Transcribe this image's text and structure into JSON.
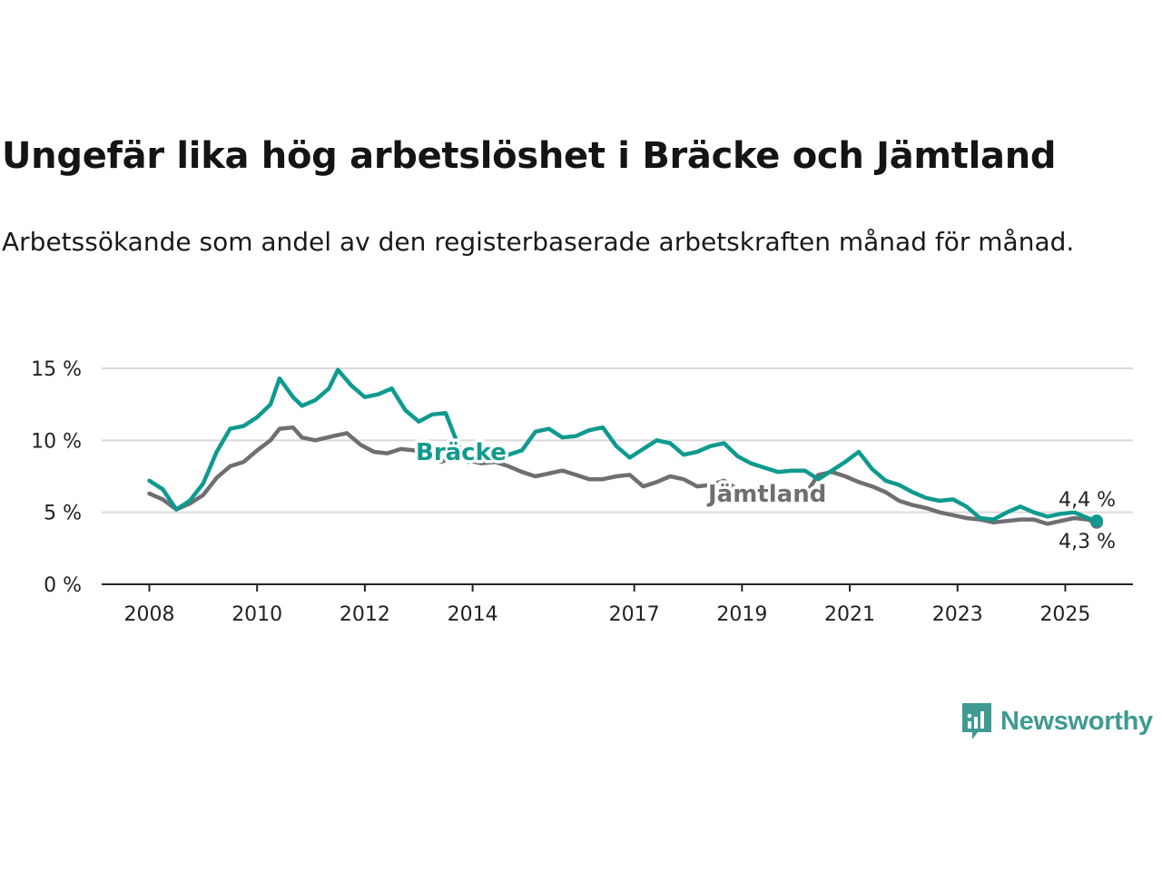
{
  "chart_data": {
    "type": "line",
    "title": "Ungefär lika hög arbetslöshet i Bräcke och Jämtland",
    "subtitle": "Arbetssökande som andel av den registerbaserade arbetskraften månad för månad.",
    "y_unit": "%",
    "ylim": [
      0,
      15
    ],
    "y_ticks": [
      0,
      5,
      10,
      15
    ],
    "y_tick_labels": [
      "0 %",
      "5 %",
      "10 %",
      "15 %"
    ],
    "x_ticks": [
      2008,
      2010,
      2012,
      2014,
      2017,
      2019,
      2021,
      2023,
      2025
    ],
    "x_tick_labels": [
      "2008",
      "2010",
      "2012",
      "2014",
      "2017",
      "2019",
      "2021",
      "2023",
      "2025"
    ],
    "grid": "horizontal",
    "series": [
      {
        "name": "Jämtland",
        "color": "#6f6e73",
        "end_label": "4,3 %",
        "points": [
          [
            "2008-01",
            6.3
          ],
          [
            "2008-04",
            5.9
          ],
          [
            "2008-07",
            5.2
          ],
          [
            "2008-10",
            5.6
          ],
          [
            "2009-01",
            6.2
          ],
          [
            "2009-04",
            7.4
          ],
          [
            "2009-07",
            8.2
          ],
          [
            "2009-10",
            8.5
          ],
          [
            "2010-01",
            9.3
          ],
          [
            "2010-04",
            10.0
          ],
          [
            "2010-06",
            10.8
          ],
          [
            "2010-09",
            10.9
          ],
          [
            "2010-11",
            10.2
          ],
          [
            "2011-02",
            10.0
          ],
          [
            "2011-06",
            10.3
          ],
          [
            "2011-09",
            10.5
          ],
          [
            "2011-12",
            9.7
          ],
          [
            "2012-03",
            9.2
          ],
          [
            "2012-06",
            9.1
          ],
          [
            "2012-09",
            9.4
          ],
          [
            "2012-12",
            9.3
          ],
          [
            "2013-03",
            8.8
          ],
          [
            "2013-06",
            8.5
          ],
          [
            "2013-09",
            8.9
          ],
          [
            "2013-12",
            8.6
          ],
          [
            "2014-03",
            8.4
          ],
          [
            "2014-06",
            8.5
          ],
          [
            "2014-09",
            8.2
          ],
          [
            "2014-12",
            7.8
          ],
          [
            "2015-03",
            7.5
          ],
          [
            "2015-06",
            7.7
          ],
          [
            "2015-09",
            7.9
          ],
          [
            "2015-12",
            7.6
          ],
          [
            "2016-03",
            7.3
          ],
          [
            "2016-06",
            7.3
          ],
          [
            "2016-09",
            7.5
          ],
          [
            "2016-12",
            7.6
          ],
          [
            "2017-03",
            6.8
          ],
          [
            "2017-06",
            7.1
          ],
          [
            "2017-09",
            7.5
          ],
          [
            "2017-12",
            7.3
          ],
          [
            "2018-03",
            6.8
          ],
          [
            "2018-06",
            6.9
          ],
          [
            "2018-09",
            7.2
          ],
          [
            "2018-12",
            6.6
          ],
          [
            "2019-03",
            5.9
          ],
          [
            "2019-06",
            5.8
          ],
          [
            "2019-09",
            6.0
          ],
          [
            "2019-12",
            6.1
          ],
          [
            "2020-03",
            6.2
          ],
          [
            "2020-06",
            7.6
          ],
          [
            "2020-09",
            7.8
          ],
          [
            "2020-12",
            7.5
          ],
          [
            "2021-03",
            7.1
          ],
          [
            "2021-06",
            6.8
          ],
          [
            "2021-09",
            6.4
          ],
          [
            "2021-12",
            5.8
          ],
          [
            "2022-03",
            5.5
          ],
          [
            "2022-06",
            5.3
          ],
          [
            "2022-09",
            5.0
          ],
          [
            "2022-12",
            4.8
          ],
          [
            "2023-03",
            4.6
          ],
          [
            "2023-06",
            4.5
          ],
          [
            "2023-09",
            4.3
          ],
          [
            "2023-12",
            4.4
          ],
          [
            "2024-03",
            4.5
          ],
          [
            "2024-06",
            4.5
          ],
          [
            "2024-09",
            4.2
          ],
          [
            "2024-12",
            4.4
          ],
          [
            "2025-03",
            4.6
          ],
          [
            "2025-06",
            4.5
          ],
          [
            "2025-08",
            4.3
          ]
        ]
      },
      {
        "name": "Bräcke",
        "color": "#0f9a8e",
        "end_label": "4,4 %",
        "points": [
          [
            "2008-01",
            7.2
          ],
          [
            "2008-04",
            6.6
          ],
          [
            "2008-07",
            5.2
          ],
          [
            "2008-10",
            5.8
          ],
          [
            "2009-01",
            7.0
          ],
          [
            "2009-04",
            9.2
          ],
          [
            "2009-07",
            10.8
          ],
          [
            "2009-10",
            11.0
          ],
          [
            "2010-01",
            11.6
          ],
          [
            "2010-04",
            12.5
          ],
          [
            "2010-06",
            14.3
          ],
          [
            "2010-09",
            13.0
          ],
          [
            "2010-11",
            12.4
          ],
          [
            "2011-02",
            12.8
          ],
          [
            "2011-05",
            13.6
          ],
          [
            "2011-07",
            14.9
          ],
          [
            "2011-10",
            13.8
          ],
          [
            "2012-01",
            13.0
          ],
          [
            "2012-04",
            13.2
          ],
          [
            "2012-07",
            13.6
          ],
          [
            "2012-10",
            12.1
          ],
          [
            "2013-01",
            11.3
          ],
          [
            "2013-04",
            11.8
          ],
          [
            "2013-07",
            11.9
          ],
          [
            "2013-10",
            9.5
          ],
          [
            "2013-12",
            8.5
          ],
          [
            "2014-03",
            8.8
          ],
          [
            "2014-06",
            8.9
          ],
          [
            "2014-09",
            9.0
          ],
          [
            "2014-12",
            9.3
          ],
          [
            "2015-03",
            10.6
          ],
          [
            "2015-06",
            10.8
          ],
          [
            "2015-09",
            10.2
          ],
          [
            "2015-12",
            10.3
          ],
          [
            "2016-03",
            10.7
          ],
          [
            "2016-06",
            10.9
          ],
          [
            "2016-09",
            9.6
          ],
          [
            "2016-12",
            8.8
          ],
          [
            "2017-03",
            9.4
          ],
          [
            "2017-06",
            10.0
          ],
          [
            "2017-09",
            9.8
          ],
          [
            "2017-12",
            9.0
          ],
          [
            "2018-03",
            9.2
          ],
          [
            "2018-06",
            9.6
          ],
          [
            "2018-09",
            9.8
          ],
          [
            "2018-12",
            8.9
          ],
          [
            "2019-03",
            8.4
          ],
          [
            "2019-06",
            8.1
          ],
          [
            "2019-09",
            7.8
          ],
          [
            "2019-12",
            7.9
          ],
          [
            "2020-03",
            7.9
          ],
          [
            "2020-06",
            7.3
          ],
          [
            "2020-09",
            7.9
          ],
          [
            "2020-12",
            8.5
          ],
          [
            "2021-03",
            9.2
          ],
          [
            "2021-06",
            8.0
          ],
          [
            "2021-09",
            7.2
          ],
          [
            "2021-12",
            6.9
          ],
          [
            "2022-03",
            6.4
          ],
          [
            "2022-06",
            6.0
          ],
          [
            "2022-09",
            5.8
          ],
          [
            "2022-12",
            5.9
          ],
          [
            "2023-03",
            5.4
          ],
          [
            "2023-06",
            4.6
          ],
          [
            "2023-09",
            4.5
          ],
          [
            "2023-12",
            5.0
          ],
          [
            "2024-03",
            5.4
          ],
          [
            "2024-06",
            5.0
          ],
          [
            "2024-09",
            4.7
          ],
          [
            "2024-12",
            4.9
          ],
          [
            "2025-03",
            5.0
          ],
          [
            "2025-06",
            4.6
          ],
          [
            "2025-08",
            4.4
          ]
        ]
      }
    ]
  },
  "brand": {
    "name": "Newsworthy",
    "color": "#3f9a91"
  }
}
